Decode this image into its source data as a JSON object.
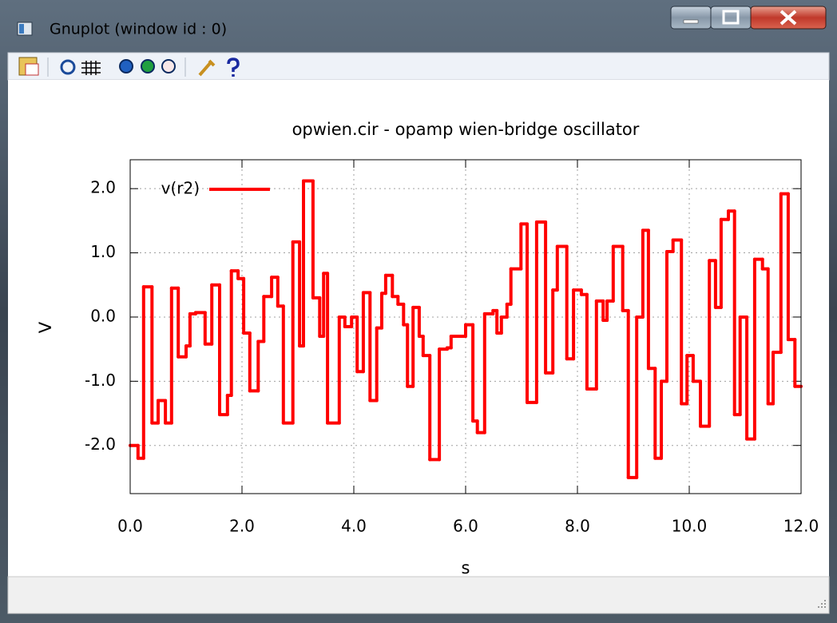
{
  "window": {
    "title": "Gnuplot (window id : 0)"
  },
  "chart_data": {
    "type": "line",
    "steps": true,
    "title": "opwien.cir - opamp wien-bridge oscillator",
    "xlabel": "s",
    "ylabel": "V",
    "xlim": [
      0,
      12
    ],
    "ylim": [
      -2.75,
      2.45
    ],
    "xticks": [
      {
        "value": 0,
        "label": "0.0"
      },
      {
        "value": 2,
        "label": "2.0"
      },
      {
        "value": 4,
        "label": "4.0"
      },
      {
        "value": 6,
        "label": "6.0"
      },
      {
        "value": 8,
        "label": "8.0"
      },
      {
        "value": 10,
        "label": "10.0"
      },
      {
        "value": 12,
        "label": "12.0"
      }
    ],
    "yticks": [
      {
        "value": -2,
        "label": "-2.0"
      },
      {
        "value": -1,
        "label": "-1.0"
      },
      {
        "value": 0,
        "label": "0.0"
      },
      {
        "value": 1,
        "label": "1.0"
      },
      {
        "value": 2,
        "label": "2.0"
      }
    ],
    "grid": true,
    "legend": "top-left",
    "series": [
      {
        "name": "v(r2)",
        "color": "#ff0000",
        "x": [
          0,
          0.14,
          0.24,
          0.39,
          0.5,
          0.63,
          0.74,
          0.86,
          1.0,
          1.07,
          1.17,
          1.34,
          1.46,
          1.6,
          1.74,
          1.81,
          1.93,
          2.03,
          2.14,
          2.29,
          2.39,
          2.53,
          2.64,
          2.74,
          2.91,
          3.03,
          3.1,
          3.27,
          3.39,
          3.46,
          3.53,
          3.74,
          3.84,
          3.96,
          4.06,
          4.17,
          4.29,
          4.41,
          4.5,
          4.57,
          4.69,
          4.79,
          4.89,
          4.96,
          5.06,
          5.17,
          5.24,
          5.36,
          5.53,
          5.67,
          5.74,
          6.0,
          6.13,
          6.21,
          6.34,
          6.49,
          6.56,
          6.64,
          6.74,
          6.81,
          6.99,
          7.1,
          7.27,
          7.43,
          7.56,
          7.64,
          7.81,
          7.93,
          8.07,
          8.17,
          8.34,
          8.46,
          8.53,
          8.64,
          8.81,
          8.91,
          9.06,
          9.17,
          9.27,
          9.39,
          9.5,
          9.6,
          9.71,
          9.86,
          9.96,
          10.07,
          10.2,
          10.36,
          10.47,
          10.57,
          10.7,
          10.81,
          10.91,
          11.03,
          11.17,
          11.31,
          11.41,
          11.5,
          11.64,
          11.77,
          11.89
        ],
        "values": [
          -2.0,
          -2.2,
          0.47,
          -1.65,
          -1.3,
          -1.65,
          0.45,
          -0.62,
          -0.45,
          0.05,
          0.07,
          -0.42,
          0.5,
          -1.52,
          -1.22,
          0.72,
          0.6,
          -0.25,
          -1.15,
          -0.38,
          0.32,
          0.62,
          0.17,
          -1.65,
          1.17,
          -0.45,
          2.12,
          0.3,
          -0.3,
          0.68,
          -1.65,
          0,
          -0.15,
          0,
          -0.85,
          0.38,
          -1.3,
          -0.17,
          0.37,
          0.65,
          0.32,
          0.2,
          -0.12,
          -1.08,
          0.15,
          -0.3,
          -0.6,
          -2.22,
          -0.5,
          -0.48,
          -0.3,
          -0.12,
          -1.62,
          -1.8,
          0.05,
          0.1,
          -0.25,
          0,
          0.2,
          0.75,
          1.45,
          -1.33,
          1.48,
          -0.87,
          0.42,
          1.1,
          -0.65,
          0.42,
          0.35,
          -1.12,
          0.25,
          -0.05,
          0.25,
          1.1,
          0.1,
          -2.5,
          0,
          1.35,
          -0.8,
          -2.2,
          -1.0,
          1.02,
          1.2,
          -1.35,
          -0.6,
          -1.0,
          -1.7,
          0.88,
          0.15,
          1.52,
          1.65,
          -1.52,
          0,
          -1.9,
          0.9,
          0.75,
          -1.35,
          -0.55,
          1.92,
          -0.35,
          -1.08
        ]
      }
    ]
  }
}
